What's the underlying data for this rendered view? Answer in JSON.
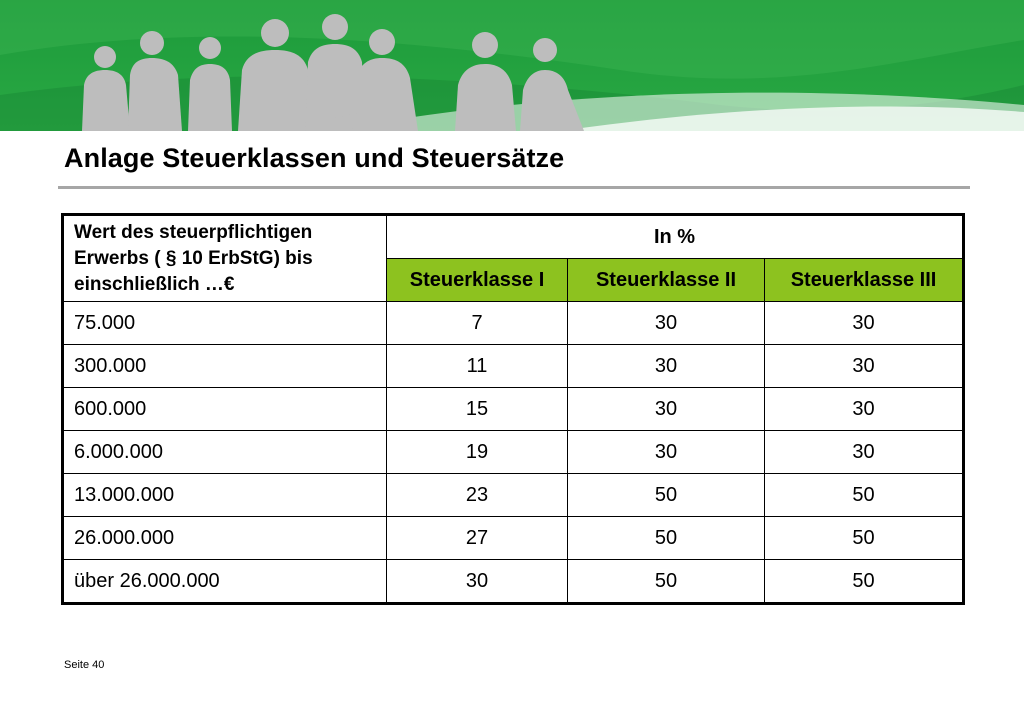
{
  "slide": {
    "title": "Anlage Steuerklassen und Steuersätze",
    "footer": "Seite 40"
  },
  "banner": {
    "background_color": "#1e9e3c",
    "silhouette_color": "#bdbdbd",
    "image": "people-silhouettes-banner"
  },
  "table": {
    "header_value": "Wert des steuerpflichtigen Erwerbs ( § 10 ErbStG) bis einschließlich …€",
    "header_percent": "In %",
    "classes": [
      "Steuerklasse I",
      "Steuerklasse II",
      "Steuerklasse III"
    ],
    "class_header_color": "#8dc21f",
    "rows": [
      {
        "value": "75.000",
        "rates": [
          "7",
          "30",
          "30"
        ]
      },
      {
        "value": "300.000",
        "rates": [
          "11",
          "30",
          "30"
        ]
      },
      {
        "value": "600.000",
        "rates": [
          "15",
          "30",
          "30"
        ]
      },
      {
        "value": "6.000.000",
        "rates": [
          "19",
          "30",
          "30"
        ]
      },
      {
        "value": "13.000.000",
        "rates": [
          "23",
          "50",
          "50"
        ]
      },
      {
        "value": "26.000.000",
        "rates": [
          "27",
          "50",
          "50"
        ]
      },
      {
        "value": "über 26.000.000",
        "rates": [
          "30",
          "50",
          "50"
        ]
      }
    ]
  }
}
